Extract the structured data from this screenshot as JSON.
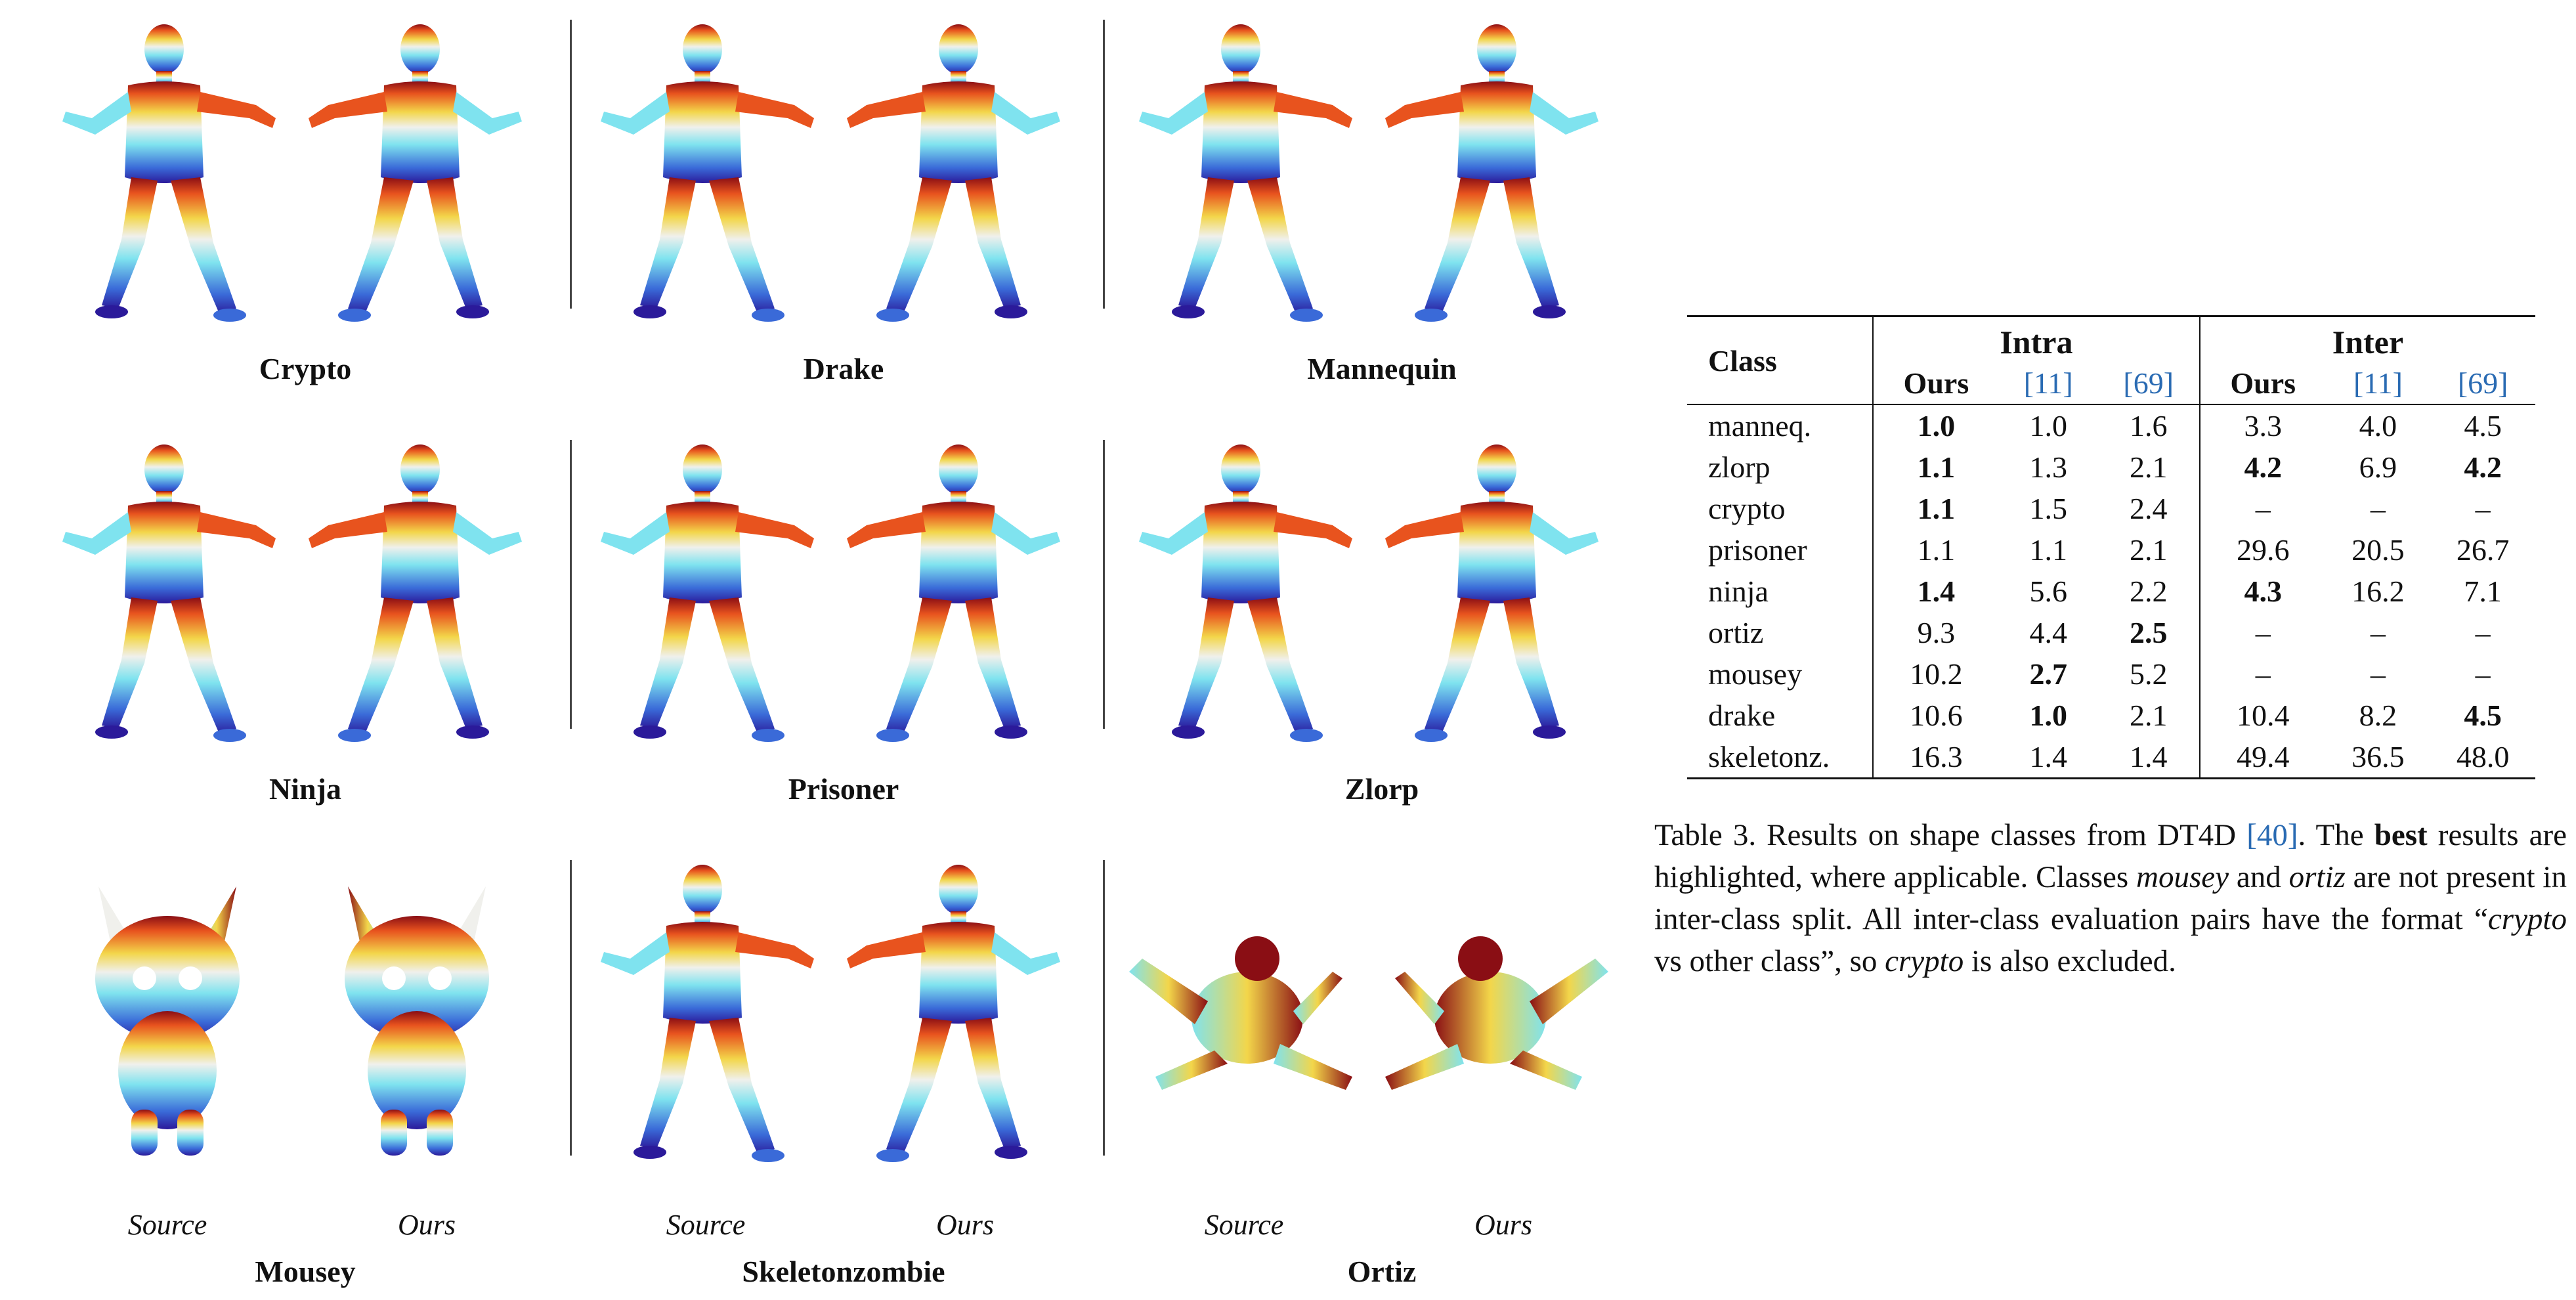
{
  "figure": {
    "rows": [
      {
        "classes": [
          "Crypto",
          "Drake",
          "Mannequin"
        ]
      },
      {
        "classes": [
          "Ninja",
          "Prisoner",
          "Zlorp"
        ]
      },
      {
        "classes": [
          "Mousey",
          "Skeletonzombie",
          "Ortiz"
        ]
      }
    ],
    "pose_labels": {
      "source": "Source",
      "ours": "Ours"
    },
    "colormap": [
      "#2b1a9a",
      "#3a6ad8",
      "#7fe3ef",
      "#f0f0ec",
      "#f3d64a",
      "#e8531e",
      "#8a0e14"
    ]
  },
  "table": {
    "header": {
      "class": "Class",
      "intra": "Intra",
      "inter": "Inter",
      "ours": "Ours",
      "ref11": "[11]",
      "ref69": "[69]"
    },
    "rows": [
      {
        "cls": "manneq.",
        "a": "1.0",
        "b": "1.0",
        "c": "1.6",
        "d": "3.3",
        "e": "4.0",
        "f": "4.5"
      },
      {
        "cls": "zlorp",
        "a": "1.1",
        "b": "1.3",
        "c": "2.1",
        "d": "4.2",
        "e": "6.9",
        "f": "4.2"
      },
      {
        "cls": "crypto",
        "a": "1.1",
        "b": "1.5",
        "c": "2.4",
        "d": "–",
        "e": "–",
        "f": "–"
      },
      {
        "cls": "prisoner",
        "a": "1.1",
        "b": "1.1",
        "c": "2.1",
        "d": "29.6",
        "e": "20.5",
        "f": "26.7"
      },
      {
        "cls": "ninja",
        "a": "1.4",
        "b": "5.6",
        "c": "2.2",
        "d": "4.3",
        "e": "16.2",
        "f": "7.1"
      },
      {
        "cls": "ortiz",
        "a": "9.3",
        "b": "4.4",
        "c": "2.5",
        "d": "–",
        "e": "–",
        "f": "–"
      },
      {
        "cls": "mousey",
        "a": "10.2",
        "b": "2.7",
        "c": "5.2",
        "d": "–",
        "e": "–",
        "f": "–"
      },
      {
        "cls": "drake",
        "a": "10.6",
        "b": "1.0",
        "c": "2.1",
        "d": "10.4",
        "e": "8.2",
        "f": "4.5"
      },
      {
        "cls": "skeletonz.",
        "a": "16.3",
        "b": "1.4",
        "c": "1.4",
        "d": "49.4",
        "e": "36.5",
        "f": "48.0"
      }
    ],
    "bold": [
      [
        "a"
      ],
      [
        "a",
        "d",
        "f"
      ],
      [
        "a"
      ],
      [],
      [
        "a",
        "d"
      ],
      [
        "c"
      ],
      [
        "b"
      ],
      [
        "b",
        "f"
      ],
      []
    ]
  },
  "caption": {
    "p1": "Table 3.  Results on shape classes from DT4D ",
    "ref40": "[40]",
    "p2": ".  The ",
    "best": "best",
    "p3": " results are highlighted, where applicable. Classes ",
    "mousey": "mousey",
    "and": " and ",
    "ortiz": "ortiz",
    "p4": " are not present in inter-class split.  All inter-class evaluation pairs have the format “",
    "crypto1": "crypto",
    "p5": " vs other class”, so ",
    "crypto2": "crypto",
    "p6": " is also excluded."
  }
}
